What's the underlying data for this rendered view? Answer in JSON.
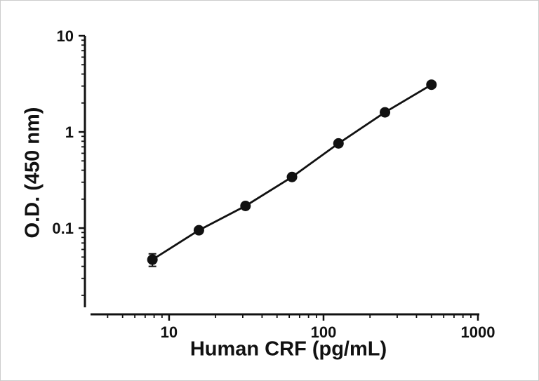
{
  "figure": {
    "background": "#ffffff",
    "ink_color": "#111111"
  },
  "chart_data": {
    "type": "scatter",
    "title": "",
    "xlabel": "Human CRF (pg/mL)",
    "ylabel": "O.D. (450 nm)",
    "x_scale": "log",
    "y_scale": "log",
    "x": [
      7.8,
      15.6,
      31.25,
      62.5,
      125,
      250,
      500
    ],
    "y": [
      0.047,
      0.095,
      0.17,
      0.34,
      0.76,
      1.6,
      3.1
    ],
    "y_err": [
      0.007,
      0.003,
      0.004,
      0.006,
      0.01,
      0.02,
      0.04
    ],
    "x_ticks": [
      10,
      100,
      1000
    ],
    "x_tick_labels": [
      "10",
      "100",
      "1000"
    ],
    "y_ticks": [
      0.1,
      1,
      10
    ],
    "y_tick_labels": [
      "0.1",
      "1",
      "10"
    ],
    "xlim": [
      3.1,
      1000
    ],
    "ylim": [
      0.015,
      10
    ],
    "grid": false,
    "legend": null,
    "line_color": "#111111",
    "marker_color": "#111111"
  }
}
